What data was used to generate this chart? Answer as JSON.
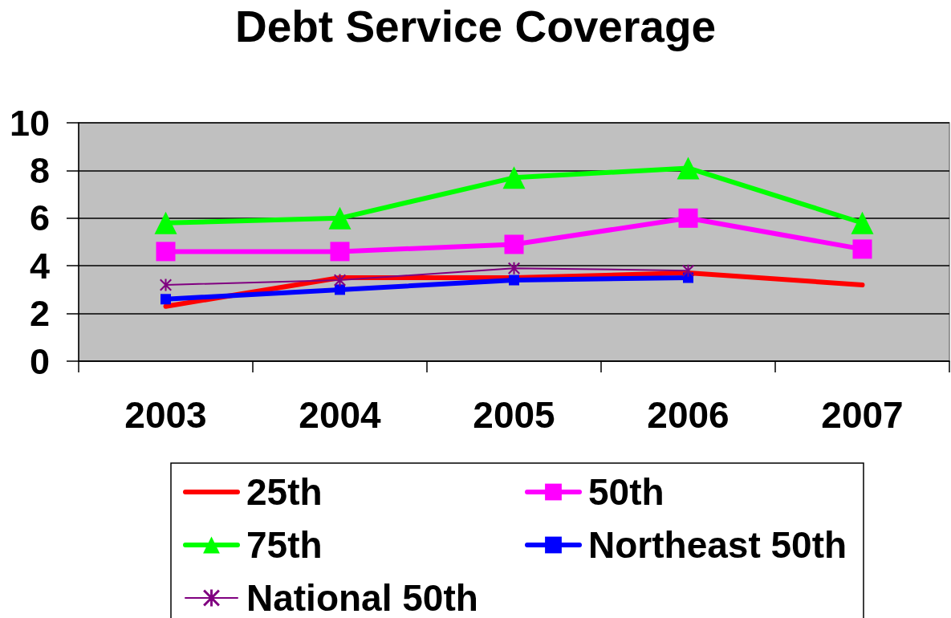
{
  "chart_data": {
    "type": "line",
    "title": "Debt Service Coverage",
    "categories": [
      "2003",
      "2004",
      "2005",
      "2006",
      "2007"
    ],
    "series": [
      {
        "name": "25th",
        "color": "#ff0000",
        "marker": "none",
        "values": [
          2.3,
          3.5,
          3.5,
          3.7,
          3.2
        ]
      },
      {
        "name": "50th",
        "color": "#ff00ff",
        "marker": "square",
        "values": [
          4.6,
          4.6,
          4.9,
          6.0,
          4.7
        ]
      },
      {
        "name": "75th",
        "color": "#00ff00",
        "marker": "triangle",
        "values": [
          5.8,
          6.0,
          7.7,
          8.1,
          5.8
        ]
      },
      {
        "name": "Northeast 50th",
        "color": "#0000ff",
        "marker": "square",
        "values": [
          2.6,
          3.0,
          3.4,
          3.5,
          null
        ]
      },
      {
        "name": "National 50th",
        "color": "#800080",
        "marker": "cross",
        "values": [
          3.2,
          3.4,
          3.9,
          3.8,
          null
        ]
      }
    ],
    "ylim": [
      0,
      10
    ],
    "yticks": [
      0,
      2,
      4,
      6,
      8,
      10
    ],
    "grid": "y",
    "legend": "bottom"
  }
}
